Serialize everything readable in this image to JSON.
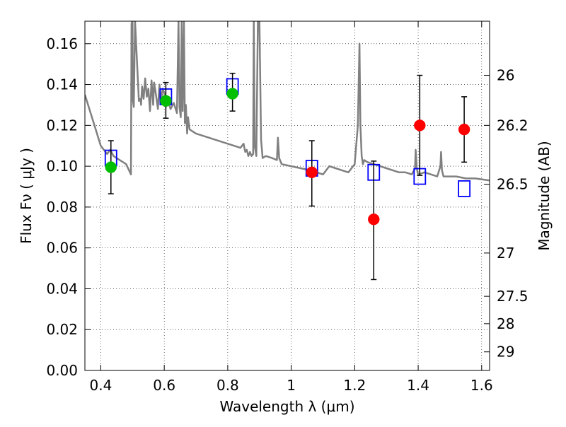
{
  "chart_data": {
    "type": "scatter",
    "xlabel": "Wavelength  λ (μm)",
    "ylabel": "Flux  Fν  ( μJy )",
    "ylabel_right": "Magnitude (AB)",
    "xlim": [
      0.35,
      1.625
    ],
    "ylim": [
      0.0,
      0.171
    ],
    "grid": true,
    "x_ticks": [
      {
        "value": 0.4,
        "label": "0.4"
      },
      {
        "value": 0.6,
        "label": "0.6"
      },
      {
        "value": 0.8,
        "label": "0.8"
      },
      {
        "value": 1.0,
        "label": "1"
      },
      {
        "value": 1.2,
        "label": "1.2"
      },
      {
        "value": 1.4,
        "label": "1.4"
      },
      {
        "value": 1.6,
        "label": "1.6"
      }
    ],
    "y_ticks": [
      {
        "value": 0.0,
        "label": "0.00"
      },
      {
        "value": 0.02,
        "label": "0.02"
      },
      {
        "value": 0.04,
        "label": "0.04"
      },
      {
        "value": 0.06,
        "label": "0.06"
      },
      {
        "value": 0.08,
        "label": "0.08"
      },
      {
        "value": 0.1,
        "label": "0.10"
      },
      {
        "value": 0.12,
        "label": "0.12"
      },
      {
        "value": 0.14,
        "label": "0.14"
      },
      {
        "value": 0.16,
        "label": "0.16"
      }
    ],
    "right_ticks": [
      {
        "flux": 0.1445,
        "label": "26"
      },
      {
        "flux": 0.12,
        "label": "26.2"
      },
      {
        "flux": 0.0912,
        "label": "26.5"
      },
      {
        "flux": 0.0575,
        "label": "27"
      },
      {
        "flux": 0.0363,
        "label": "27.5"
      },
      {
        "flux": 0.0229,
        "label": "28"
      },
      {
        "flux": 0.0091,
        "label": "29"
      }
    ],
    "series": [
      {
        "kind": "line",
        "color": "#808080",
        "x": [
          0.35,
          0.36,
          0.38,
          0.4,
          0.42,
          0.43,
          0.44,
          0.46,
          0.48,
          0.495,
          0.497,
          0.5,
          0.501,
          0.504,
          0.508,
          0.52,
          0.525,
          0.527,
          0.53,
          0.535,
          0.54,
          0.545,
          0.55,
          0.555,
          0.56,
          0.565,
          0.568,
          0.572,
          0.58,
          0.585,
          0.59,
          0.595,
          0.6,
          0.605,
          0.61,
          0.62,
          0.63,
          0.64,
          0.645,
          0.648,
          0.652,
          0.655,
          0.658,
          0.662,
          0.665,
          0.668,
          0.672,
          0.675,
          0.68,
          0.7,
          0.72,
          0.74,
          0.76,
          0.78,
          0.8,
          0.82,
          0.84,
          0.85,
          0.855,
          0.86,
          0.865,
          0.87,
          0.875,
          0.88,
          0.882,
          0.885,
          0.89,
          0.895,
          0.9,
          0.905,
          0.91,
          0.92,
          0.94,
          0.955,
          0.958,
          0.962,
          0.97,
          1.0,
          1.03,
          1.06,
          1.08,
          1.1,
          1.12,
          1.14,
          1.16,
          1.18,
          1.2,
          1.21,
          1.215,
          1.218,
          1.222,
          1.226,
          1.23,
          1.24,
          1.26,
          1.28,
          1.3,
          1.32,
          1.34,
          1.36,
          1.38,
          1.39,
          1.392,
          1.395,
          1.398,
          1.4,
          1.42,
          1.44,
          1.46,
          1.47,
          1.472,
          1.475,
          1.48,
          1.5,
          1.52,
          1.55,
          1.58,
          1.625
        ],
        "y": [
          0.135,
          0.13,
          0.12,
          0.11,
          0.106,
          0.108,
          0.105,
          0.103,
          0.101,
          0.096,
          0.17,
          0.171,
          0.133,
          0.129,
          0.171,
          0.132,
          0.133,
          0.13,
          0.139,
          0.133,
          0.143,
          0.134,
          0.138,
          0.127,
          0.142,
          0.13,
          0.141,
          0.137,
          0.128,
          0.14,
          0.132,
          0.138,
          0.136,
          0.129,
          0.133,
          0.128,
          0.131,
          0.126,
          0.171,
          0.129,
          0.124,
          0.171,
          0.127,
          0.171,
          0.121,
          0.13,
          0.116,
          0.124,
          0.118,
          0.116,
          0.115,
          0.114,
          0.113,
          0.112,
          0.111,
          0.11,
          0.109,
          0.111,
          0.107,
          0.108,
          0.105,
          0.107,
          0.105,
          0.106,
          0.171,
          0.11,
          0.105,
          0.171,
          0.171,
          0.113,
          0.104,
          0.105,
          0.104,
          0.103,
          0.114,
          0.104,
          0.101,
          0.1,
          0.099,
          0.098,
          0.097,
          0.096,
          0.1,
          0.099,
          0.098,
          0.097,
          0.101,
          0.12,
          0.16,
          0.12,
          0.105,
          0.101,
          0.103,
          0.102,
          0.101,
          0.1,
          0.099,
          0.098,
          0.097,
          0.097,
          0.096,
          0.099,
          0.108,
          0.1,
          0.097,
          0.096,
          0.097,
          0.096,
          0.095,
          0.1,
          0.107,
          0.098,
          0.095,
          0.095,
          0.095,
          0.094,
          0.094,
          0.093
        ]
      },
      {
        "kind": "open-squares",
        "color": "#0000ff",
        "x": [
          0.432,
          0.605,
          0.815,
          1.065,
          1.26,
          1.405,
          1.545
        ],
        "y": [
          0.104,
          0.134,
          0.139,
          0.099,
          0.097,
          0.095,
          0.089
        ]
      },
      {
        "kind": "filled-circles",
        "color": "#00bf00",
        "x": [
          0.432,
          0.605,
          0.815
        ],
        "y": [
          0.0995,
          0.132,
          0.1355
        ],
        "yerr_low": [
          0.0865,
          0.1235,
          0.127
        ],
        "yerr_high": [
          0.1125,
          0.141,
          0.1455
        ]
      },
      {
        "kind": "filled-circles",
        "color": "#ff0000",
        "x": [
          1.065,
          1.26,
          1.405,
          1.545
        ],
        "y": [
          0.097,
          0.074,
          0.12,
          0.118
        ],
        "yerr_low": [
          0.0805,
          0.0445,
          0.0955,
          0.102
        ],
        "yerr_high": [
          0.1125,
          0.1025,
          0.1445,
          0.134
        ]
      }
    ]
  }
}
